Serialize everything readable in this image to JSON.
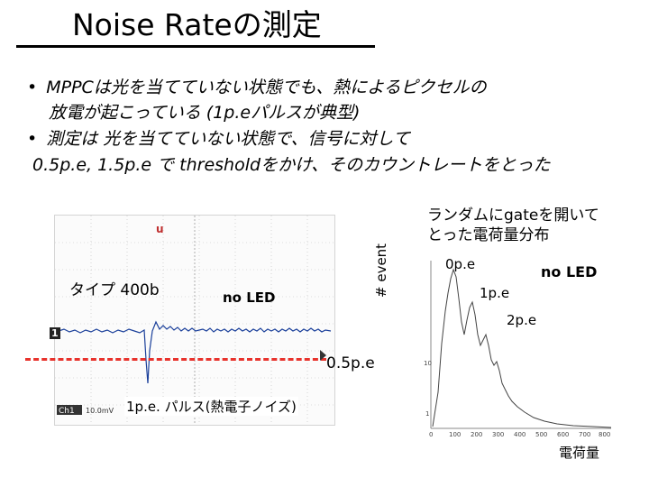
{
  "slide": {
    "title": "Noise Rateの測定",
    "bullets": [
      {
        "marker": "•",
        "lines": [
          "MPPCは光を当てていない状態でも、熱によるピクセルの",
          "放電が起こっている (1p.eパルスが典型)"
        ]
      },
      {
        "marker": "•",
        "lines": [
          "測定は 光を当てていない状態で、信号に対して",
          "0.5p.e, 1.5p.e で thresholdをかけ、そのカウントレートをとった"
        ]
      }
    ]
  },
  "oscilloscope": {
    "type_label": "タイプ 400b",
    "no_led": "no LED",
    "threshold_label": "0.5p.e",
    "pulse_label": "1p.e. パルス(熱電子ノイズ)",
    "trigger_marker": "u",
    "left_marker": "1",
    "channel_label": "Ch1",
    "scale_text": "10.0mV",
    "threshold_color": "#e8322c",
    "trace_color": "#1a3f9a"
  },
  "histogram": {
    "annotation_lines": [
      "ランダムにgateを開いて",
      "とった電荷量分布"
    ],
    "ylabel": "# event",
    "xlabel": "電荷量",
    "no_led": "no LED",
    "peak_labels": [
      "0p.e",
      "1p.e",
      "2p.e"
    ],
    "x_ticks": [
      "0",
      "100",
      "200",
      "300",
      "400",
      "500",
      "600",
      "700",
      "800"
    ],
    "y_ticks": [
      "10",
      "1"
    ]
  }
}
